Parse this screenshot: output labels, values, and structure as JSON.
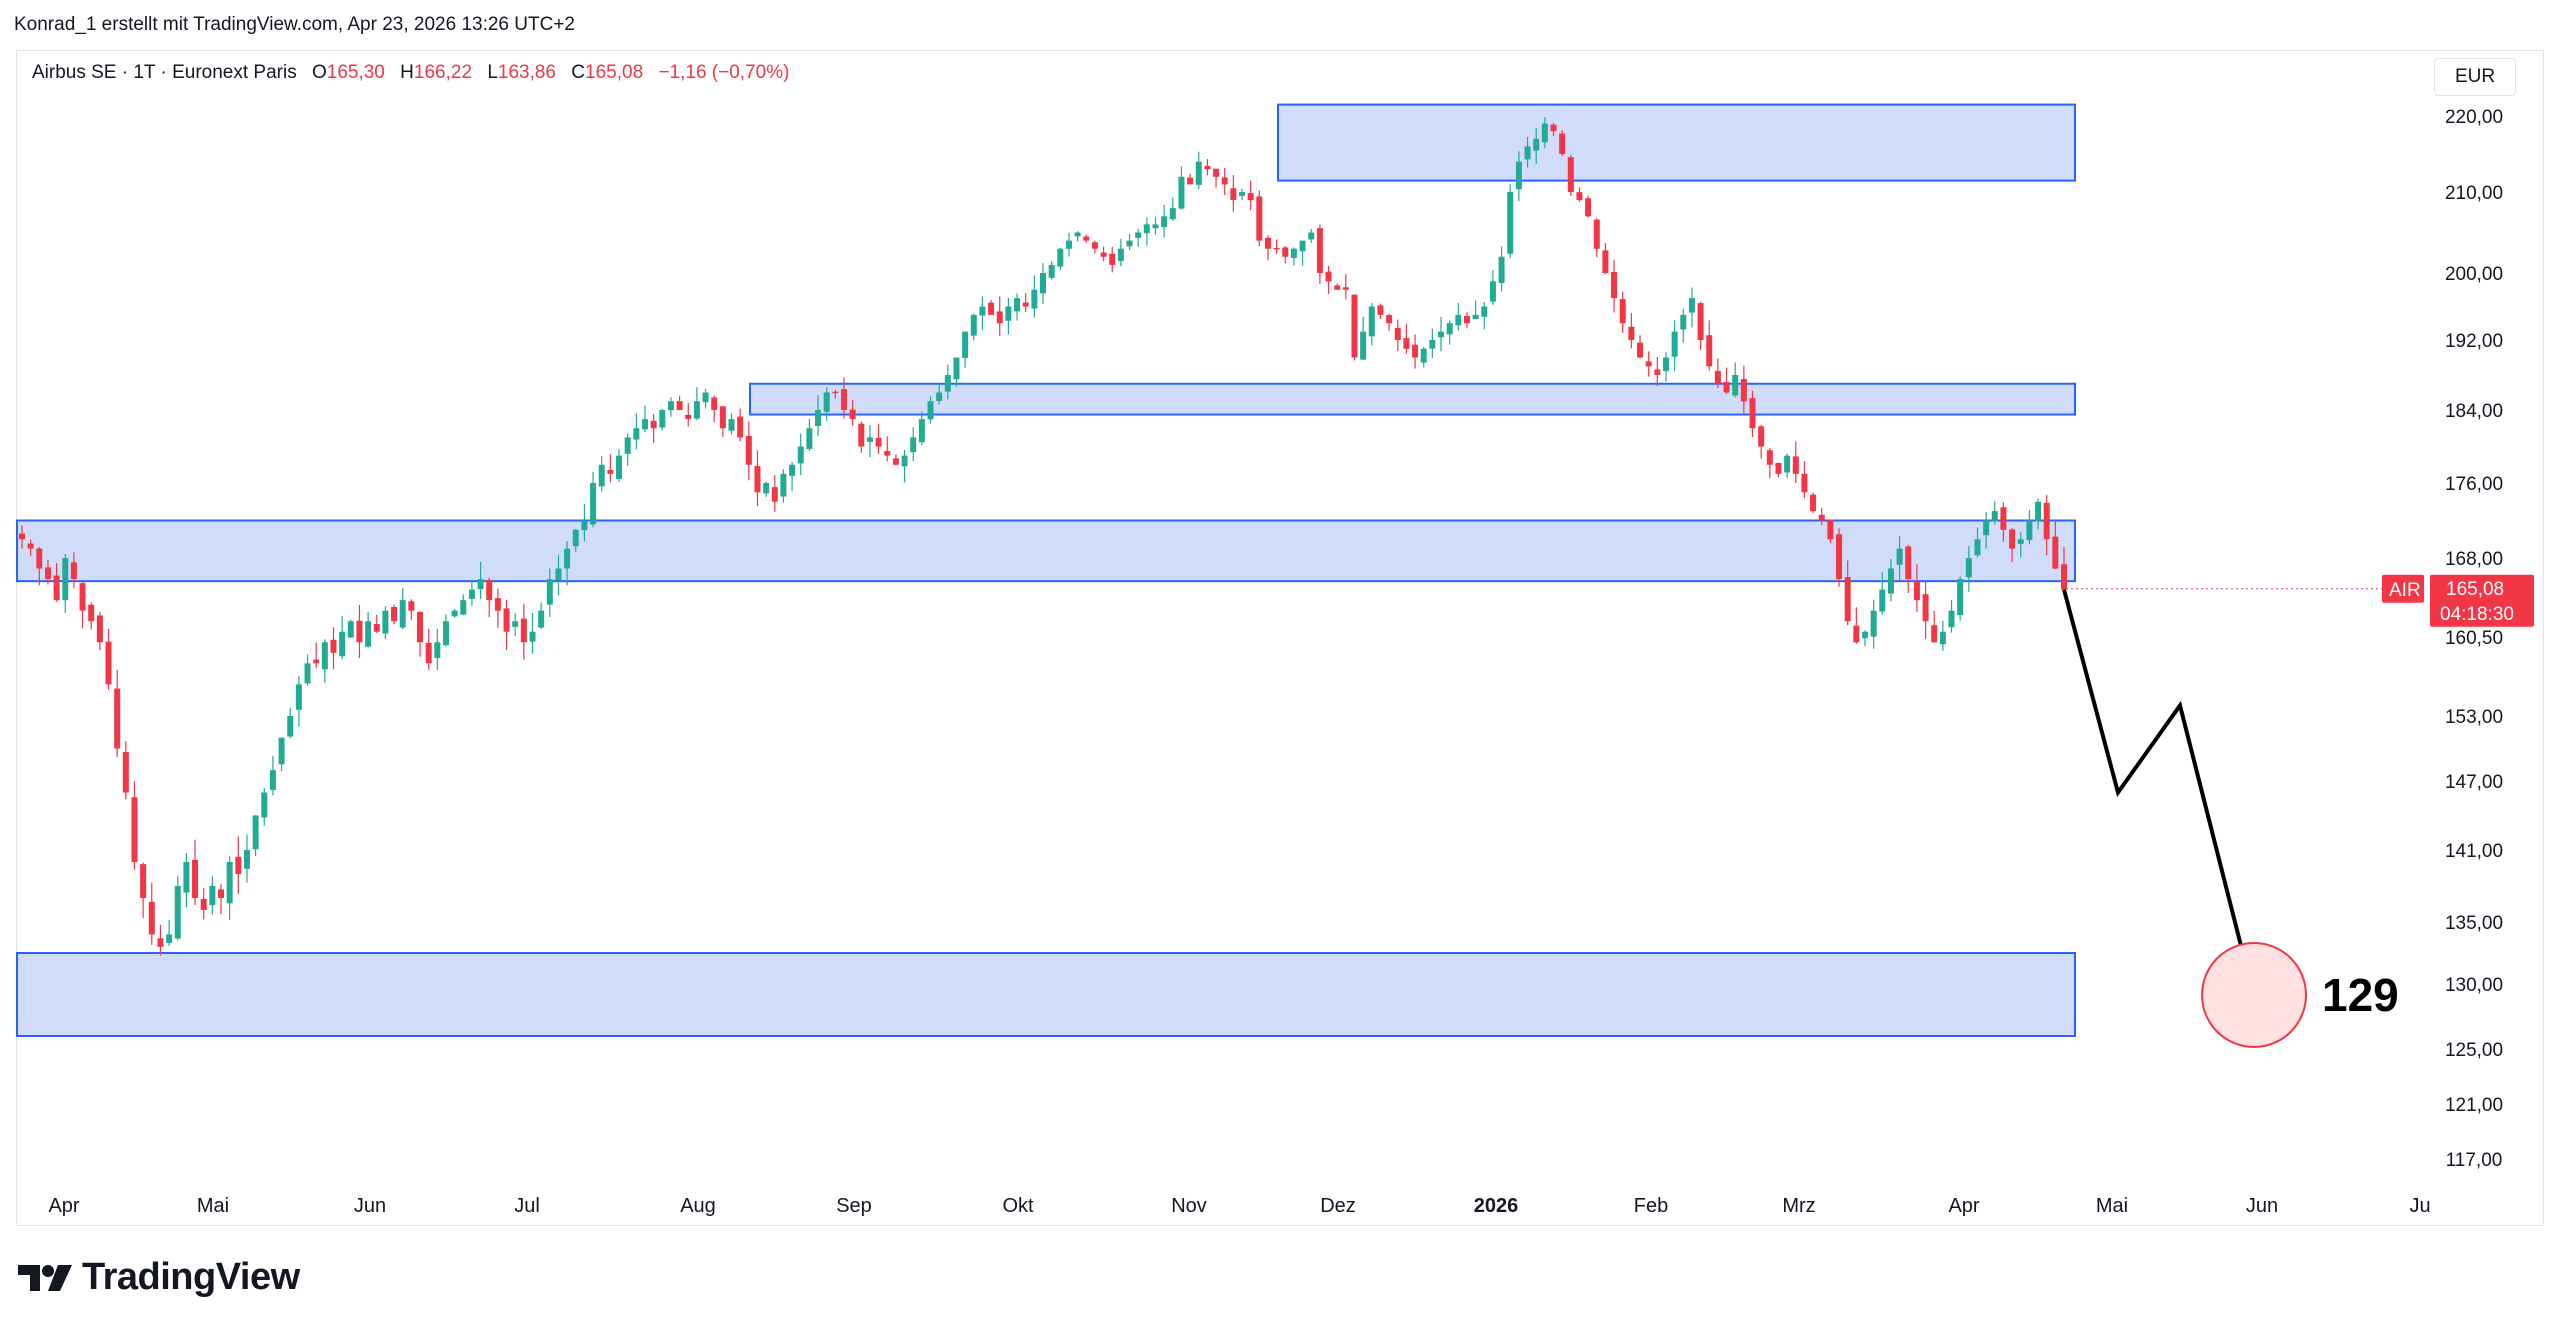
{
  "header": {
    "attribution": "Konrad_1 erstellt mit TradingView.com, Apr 23, 2026 13:26 UTC+2"
  },
  "legend": {
    "symbol": "Airbus SE · 1T · Euronext Paris",
    "open_label": "O",
    "open": "165,30",
    "high_label": "H",
    "high": "166,22",
    "low_label": "L",
    "low": "163,86",
    "close_label": "C",
    "close": "165,08",
    "change": "−1,16 (−0,70%)"
  },
  "currency": "EUR",
  "price_tag": {
    "ticker": "AIR",
    "price": "165,08",
    "countdown": "04:18:30"
  },
  "target_label": "129",
  "brand": "TradingView",
  "colors": {
    "up": "#22ab94",
    "down": "#f23645",
    "zone_fill": "#d1dcfb",
    "zone_border": "#2962ff",
    "text": "#131722",
    "axis_text": "#131722"
  },
  "chart_data": {
    "type": "candlestick",
    "y_axis_labels": [
      "220,00",
      "210,00",
      "200,00",
      "192,00",
      "184,00",
      "176,00",
      "168,00",
      "160,50",
      "153,00",
      "147,00",
      "141,00",
      "135,00",
      "130,00",
      "125,00",
      "121,00",
      "117,00"
    ],
    "x_axis_labels": [
      "Apr",
      "Mai",
      "Jun",
      "Jul",
      "Aug",
      "Sep",
      "Okt",
      "Nov",
      "Dez",
      "2026",
      "Feb",
      "Mrz",
      "Apr",
      "Mai",
      "Jun",
      "Ju"
    ],
    "last_price": 165.08,
    "zones": [
      {
        "from_month": "Nov",
        "to_month": "Apr",
        "low": 211.5,
        "high": 221.5
      },
      {
        "from_month": "Aug",
        "to_month": "Apr",
        "low": 183.5,
        "high": 187.0
      },
      {
        "from_month": "Apr",
        "to_month": "Apr",
        "low": 165.8,
        "high": 172.0
      },
      {
        "from_month": "Apr",
        "to_month": "Apr",
        "low": 126.0,
        "high": 132.5
      }
    ],
    "projection": {
      "points": [
        [
          0,
          165
        ],
        [
          1,
          146
        ],
        [
          2,
          154
        ],
        [
          3,
          129
        ]
      ],
      "target": 129
    },
    "price_path": [
      170,
      169,
      167,
      166,
      164,
      168,
      166,
      163,
      162,
      160,
      156,
      150,
      146,
      140,
      137,
      134,
      133,
      134,
      138,
      140,
      137,
      136,
      138,
      137,
      140,
      139,
      141,
      144,
      146,
      148,
      151,
      153,
      156,
      158,
      158,
      160,
      159,
      161,
      162,
      160,
      162,
      161,
      163,
      162,
      164,
      163,
      160,
      158,
      160,
      162,
      163,
      164,
      165,
      166,
      164,
      163,
      161,
      162,
      160,
      161,
      163,
      166,
      167,
      169,
      171,
      172,
      176,
      178,
      177,
      179,
      181,
      182,
      183,
      182,
      184,
      185,
      184,
      183,
      185,
      186,
      184,
      182,
      183,
      181,
      178,
      175,
      176,
      174,
      177,
      178,
      180,
      182,
      184,
      186,
      186,
      184,
      183,
      180,
      181,
      180,
      179,
      178,
      179,
      181,
      183,
      185,
      186,
      188,
      190,
      193,
      195,
      196,
      195,
      194,
      196,
      197,
      196,
      198,
      200,
      201,
      203,
      204,
      205,
      204,
      203,
      202,
      201,
      203,
      204,
      205,
      206,
      206,
      207,
      208,
      212,
      211,
      214,
      213,
      212,
      211,
      209,
      210,
      209,
      204,
      203,
      203,
      202,
      203,
      204,
      205,
      200,
      199,
      198,
      198,
      190,
      193,
      196,
      195,
      194,
      192,
      191,
      190,
      191,
      192,
      193,
      194,
      195,
      194,
      195,
      196,
      199,
      202,
      210,
      214,
      216,
      217,
      219,
      218,
      215,
      210,
      209,
      207,
      203,
      200,
      197,
      194,
      192,
      190,
      189,
      188,
      190,
      193,
      195,
      197,
      192,
      189,
      187,
      186,
      188,
      185,
      182,
      180,
      178,
      177,
      179,
      177,
      175,
      173,
      172,
      170,
      166,
      162,
      160,
      161,
      163,
      165,
      167,
      169,
      166,
      164,
      162,
      160,
      161,
      163,
      166,
      168,
      170,
      172,
      173,
      171,
      169,
      170,
      172,
      174,
      170,
      167,
      165
    ]
  }
}
